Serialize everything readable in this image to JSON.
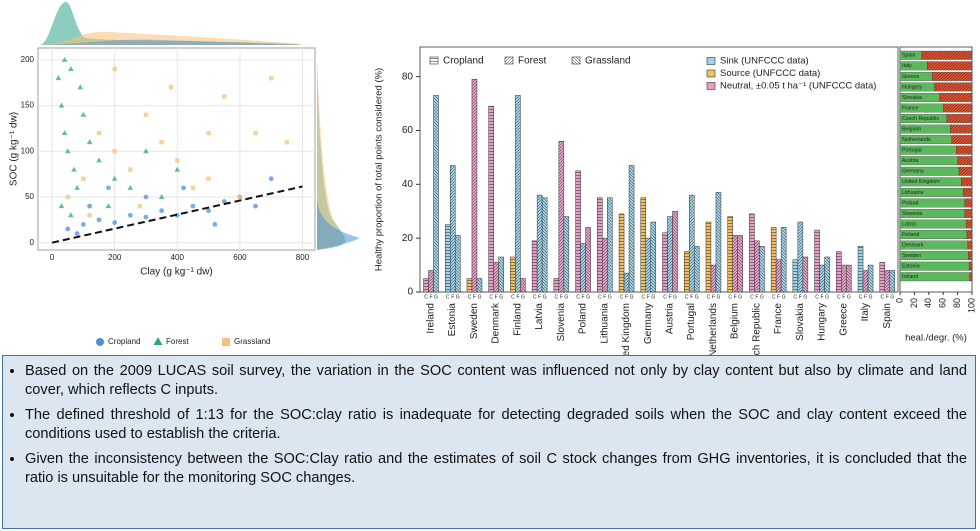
{
  "chart_data": [
    {
      "type": "scatter",
      "xlabel": "Clay (g kg⁻¹ dw)",
      "ylabel": "SOC (g kg⁻¹ dw)",
      "xlim": [
        -45,
        840
      ],
      "ylim": [
        -8,
        213
      ],
      "xticks": [
        0,
        200,
        400,
        600,
        800
      ],
      "yticks": [
        0,
        50,
        100,
        150,
        200
      ],
      "grid": true,
      "series": [
        {
          "name": "Cropland",
          "color": "#4f8fd6",
          "marker": "circle",
          "x": [
            50,
            100,
            150,
            200,
            250,
            300,
            350,
            400,
            450,
            500,
            550,
            600,
            650,
            700,
            120,
            180,
            80,
            300,
            420,
            520
          ],
          "y": [
            15,
            20,
            25,
            22,
            30,
            28,
            35,
            30,
            40,
            35,
            45,
            50,
            40,
            70,
            40,
            60,
            10,
            50,
            60,
            20
          ]
        },
        {
          "name": "Forest",
          "color": "#2ca58d",
          "marker": "triangle",
          "x": [
            20,
            30,
            40,
            50,
            60,
            70,
            80,
            100,
            120,
            150,
            200,
            250,
            300,
            350,
            30,
            60,
            90,
            400,
            180,
            40
          ],
          "y": [
            180,
            150,
            120,
            100,
            190,
            80,
            60,
            140,
            110,
            90,
            70,
            60,
            100,
            50,
            40,
            30,
            170,
            80,
            40,
            200
          ]
        },
        {
          "name": "Grassland",
          "color": "#f5c07a",
          "marker": "square",
          "x": [
            50,
            100,
            150,
            200,
            250,
            300,
            350,
            400,
            450,
            500,
            550,
            600,
            650,
            700,
            750,
            120,
            200,
            280,
            380,
            500
          ],
          "y": [
            50,
            70,
            120,
            100,
            80,
            140,
            110,
            90,
            60,
            70,
            160,
            50,
            120,
            180,
            110,
            30,
            190,
            40,
            170,
            120
          ]
        }
      ],
      "reference_line": {
        "x": [
          0,
          800
        ],
        "y": [
          0,
          61.5
        ]
      }
    },
    {
      "type": "bar",
      "ylabel": "Healthy proportion of total points considered (%)",
      "ylim": [
        0,
        91
      ],
      "yticks": [
        0,
        20,
        40,
        60,
        80
      ],
      "categories": [
        "Ireland",
        "Estonia",
        "Sweden",
        "Denmark",
        "Finland",
        "Latvia",
        "Slovenia",
        "Poland",
        "Lithuania",
        "United Kingdom",
        "Germany",
        "Austria",
        "Portugal",
        "Netherlands",
        "Belgium",
        "Czech Republic",
        "France",
        "Slovakia",
        "Hungary",
        "Greece",
        "Italy",
        "Spain"
      ],
      "bar_sublabels": [
        "C",
        "F",
        "G"
      ],
      "series": [
        {
          "name": "Cropland",
          "hatch": "horizontal",
          "values": [
            5,
            25,
            5,
            69,
            13,
            19,
            5,
            45,
            35,
            29,
            35,
            22,
            15,
            26,
            28,
            29,
            24,
            12,
            23,
            15,
            17,
            11
          ],
          "colors": [
            "#e7a1c8",
            "#9fd3ea",
            "#f2c065",
            "#e7a1c8",
            "#f2c065",
            "#e7a1c8",
            "#e7a1c8",
            "#e7a1c8",
            "#e7a1c8",
            "#f2c065",
            "#f2c065",
            "#e7a1c8",
            "#f2c065",
            "#f2c065",
            "#f2c065",
            "#e7a1c8",
            "#f2c065",
            "#9fd3ea",
            "#e7a1c8",
            "#e7a1c8",
            "#9fd3ea",
            "#e7a1c8"
          ]
        },
        {
          "name": "Forest",
          "hatch": "forward",
          "values": [
            8,
            47,
            79,
            11,
            73,
            36,
            56,
            18,
            20,
            7,
            20,
            28,
            36,
            10,
            21,
            19,
            12,
            26,
            10,
            10,
            8,
            8
          ],
          "colors": [
            "#e7a1c8",
            "#9fd3ea",
            "#e7a1c8",
            "#e7a1c8",
            "#9fd3ea",
            "#9fd3ea",
            "#e7a1c8",
            "#9fd3ea",
            "#e7a1c8",
            "#9fd3ea",
            "#9fd3ea",
            "#9fd3ea",
            "#9fd3ea",
            "#e7a1c8",
            "#e7a1c8",
            "#e7a1c8",
            "#e7a1c8",
            "#9fd3ea",
            "#9fd3ea",
            "#e7a1c8",
            "#e7a1c8",
            "#e7a1c8"
          ]
        },
        {
          "name": "Grassland",
          "hatch": "backward",
          "values": [
            73,
            21,
            5,
            13,
            5,
            35,
            28,
            24,
            35,
            47,
            26,
            30,
            17,
            37,
            21,
            17,
            24,
            13,
            13,
            10,
            10,
            8
          ],
          "colors": [
            "#9fd3ea",
            "#9fd3ea",
            "#9fd3ea",
            "#9fd3ea",
            "#e7a1c8",
            "#9fd3ea",
            "#9fd3ea",
            "#e7a1c8",
            "#9fd3ea",
            "#9fd3ea",
            "#9fd3ea",
            "#e7a1c8",
            "#9fd3ea",
            "#9fd3ea",
            "#e7a1c8",
            "#9fd3ea",
            "#9fd3ea",
            "#e7a1c8",
            "#9fd3ea",
            "#e7a1c8",
            "#9fd3ea",
            "#9fd3ea"
          ]
        }
      ],
      "status_legend": [
        {
          "name": "Sink (UNFCCC data)",
          "color": "#9fd3ea"
        },
        {
          "name": "Source (UNFCCC data)",
          "color": "#f2c065"
        },
        {
          "name": "Neutral, ±0.05 t ha⁻¹ (UNFCCC data)",
          "color": "#e7a1c8"
        }
      ]
    },
    {
      "type": "barh-stacked",
      "xlabel": "heal./degr. (%)",
      "xlim": [
        0,
        100
      ],
      "xticks": [
        0,
        20,
        40,
        60,
        80,
        100
      ],
      "categories": [
        "Spain",
        "Italy",
        "Greece",
        "Hungary",
        "Slovakia",
        "France",
        "Czech Republic",
        "Belgium",
        "Netherlands",
        "Portugal",
        "Austria",
        "Germany",
        "United Kingdom",
        "Lithuania",
        "Poland",
        "Slovenia",
        "Latvia",
        "Finland",
        "Denmark",
        "Sweden",
        "Estonia",
        "Ireland"
      ],
      "series": [
        {
          "color": "#5cb85c",
          "values": [
            30,
            38,
            45,
            48,
            55,
            60,
            65,
            70,
            72,
            78,
            80,
            82,
            85,
            88,
            90,
            90,
            92,
            93,
            94,
            95,
            96,
            97
          ]
        },
        {
          "color": "#e0502f",
          "values": [
            70,
            62,
            55,
            52,
            45,
            40,
            35,
            30,
            28,
            22,
            20,
            18,
            15,
            12,
            10,
            10,
            8,
            7,
            6,
            5,
            4,
            3
          ]
        }
      ]
    }
  ],
  "bullets": [
    "Based on the 2009 LUCAS soil survey, the variation in the SOC content was influenced not only by clay content but also by climate and land cover, which reflects C inputs.",
    "The defined threshold of 1:13 for the SOC:clay ratio is inadequate for detecting degraded soils when the SOC and clay content exceed the conditions used to establish the criteria.",
    "Given the inconsistency between the SOC:Clay ratio and the estimates of soil C stock changes from GHG inventories, it is concluded that the ratio is unsuitable for the monitoring SOC changes."
  ]
}
